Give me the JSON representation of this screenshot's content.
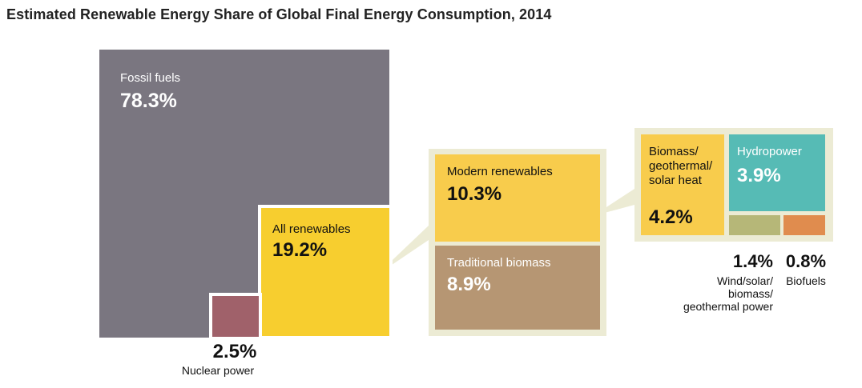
{
  "chart_data": {
    "type": "treemap",
    "title": "Estimated Renewable Energy Share of Global Final Energy Consumption, 2014",
    "colors": {
      "fossil": "#7a7680",
      "nuclear": "#a0616a",
      "all_renewables": "#f7ce2f",
      "modern": "#f8cc4c",
      "traditional": "#b69673",
      "hydro": "#56bbb5",
      "wind": "#b6b778",
      "biofuels": "#e08c4e",
      "callout": "#ecebd4"
    },
    "items": [
      {
        "id": "fossil",
        "label": "Fossil fuels",
        "value": 78.3,
        "display": "78.3%"
      },
      {
        "id": "nuclear",
        "label": "Nuclear power",
        "value": 2.5,
        "display": "2.5%"
      },
      {
        "id": "all_renewables",
        "label": "All renewables",
        "value": 19.2,
        "display": "19.2%"
      },
      {
        "id": "modern",
        "label": "Modern renewables",
        "value": 10.3,
        "display": "10.3%",
        "parent": "all_renewables"
      },
      {
        "id": "traditional",
        "label": "Traditional biomass",
        "value": 8.9,
        "display": "8.9%",
        "parent": "all_renewables"
      },
      {
        "id": "heat",
        "label": "Biomass/ geothermal/ solar heat",
        "value": 4.2,
        "display": "4.2%",
        "parent": "modern"
      },
      {
        "id": "hydro",
        "label": "Hydropower",
        "value": 3.9,
        "display": "3.9%",
        "parent": "modern"
      },
      {
        "id": "wind",
        "label": "Wind/solar/ biomass/ geothermal power",
        "value": 1.4,
        "display": "1.4%",
        "parent": "modern"
      },
      {
        "id": "biofuels",
        "label": "Biofuels",
        "value": 0.8,
        "display": "0.8%",
        "parent": "modern"
      }
    ]
  }
}
